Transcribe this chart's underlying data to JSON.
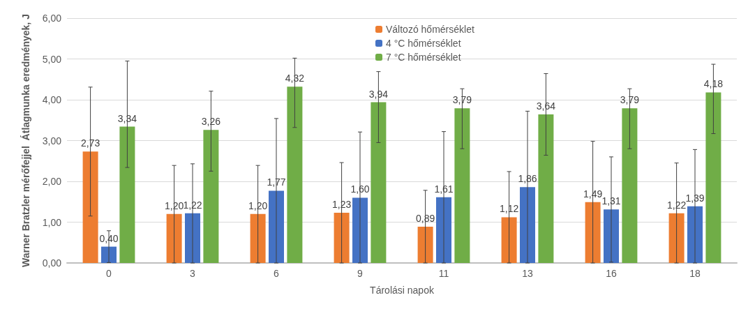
{
  "chart_data": {
    "type": "bar",
    "xlabel": "Tárolási napok",
    "ylabel": "Warner Bratzler mérőfejjel  Átlagmunka eredmények, J",
    "categories": [
      "0",
      "3",
      "6",
      "9",
      "11",
      "13",
      "16",
      "18"
    ],
    "series": [
      {
        "name": "Változó hőmérséklet",
        "color": "#ed7d31",
        "values": [
          2.73,
          1.2,
          1.2,
          1.23,
          0.89,
          1.12,
          1.49,
          1.22
        ],
        "value_labels": [
          "2,73",
          "1,20",
          "1,20",
          "1,23",
          "0,89",
          "1,12",
          "1,49",
          "1,22"
        ],
        "errors": [
          [
            1.15,
            4.31
          ],
          [
            0,
            2.39
          ],
          [
            0,
            2.39
          ],
          [
            0,
            2.46
          ],
          [
            0,
            1.78
          ],
          [
            0,
            2.24
          ],
          [
            0,
            2.98
          ],
          [
            0,
            2.45
          ]
        ]
      },
      {
        "name": "4 °C hőmérséklet",
        "color": "#4472c4",
        "values": [
          0.4,
          1.22,
          1.77,
          1.6,
          1.61,
          1.86,
          1.31,
          1.39
        ],
        "value_labels": [
          "0,40",
          "1,22",
          "1,77",
          "1,60",
          "1,61",
          "1,86",
          "1,31",
          "1,39"
        ],
        "errors": [
          [
            0.01,
            0.79
          ],
          [
            0,
            2.43
          ],
          [
            0,
            3.54
          ],
          [
            0,
            3.21
          ],
          [
            0,
            3.22
          ],
          [
            0,
            3.72
          ],
          [
            0.02,
            2.6
          ],
          [
            0,
            2.78
          ]
        ]
      },
      {
        "name": "7 °C hőmérséklet",
        "color": "#70ad47",
        "values": [
          3.34,
          3.26,
          4.32,
          3.94,
          3.79,
          3.64,
          3.79,
          4.18
        ],
        "value_labels": [
          "3,34",
          "3,26",
          "4,32",
          "3,94",
          "3,79",
          "3,64",
          "3,79",
          "4,18"
        ],
        "errors": [
          [
            2.34,
            4.95
          ],
          [
            2.25,
            4.21
          ],
          [
            3.32,
            5.02
          ],
          [
            2.95,
            4.69
          ],
          [
            2.8,
            4.27
          ],
          [
            2.64,
            4.64
          ],
          [
            2.8,
            4.27
          ],
          [
            3.17,
            4.87
          ]
        ]
      }
    ],
    "ylim": [
      0,
      6
    ],
    "yticks": [
      {
        "value": 0,
        "label": "0,00"
      },
      {
        "value": 1,
        "label": "1,00"
      },
      {
        "value": 2,
        "label": "2,00"
      },
      {
        "value": 3,
        "label": "3,00"
      },
      {
        "value": 4,
        "label": "4,00"
      },
      {
        "value": 5,
        "label": "5,00"
      },
      {
        "value": 6,
        "label": "6,00"
      }
    ],
    "grid": "y",
    "legend": "top"
  }
}
